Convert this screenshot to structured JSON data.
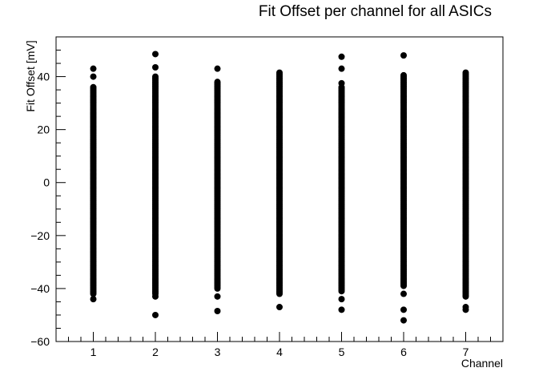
{
  "chart_data": {
    "type": "scatter",
    "title": "Fit Offset per channel for all ASICs",
    "xlabel": "Channel",
    "ylabel": "Fit Offset [mV]",
    "xlim": [
      0.4,
      7.6
    ],
    "ylim": [
      -60,
      55
    ],
    "x_ticks": [
      1,
      2,
      3,
      4,
      5,
      6,
      7
    ],
    "y_ticks": [
      -60,
      -40,
      -20,
      0,
      20,
      40
    ],
    "grid": false,
    "marker_color": "#000000",
    "series": [
      {
        "band_ranges": [
          {
            "channel": 1,
            "dense_min": -42,
            "dense_max": 36
          },
          {
            "channel": 2,
            "dense_min": -42,
            "dense_max": 40
          },
          {
            "channel": 3,
            "dense_min": -40,
            "dense_max": 38
          },
          {
            "channel": 4,
            "dense_min": -42,
            "dense_max": 41
          },
          {
            "channel": 5,
            "dense_min": -41,
            "dense_max": 36
          },
          {
            "channel": 6,
            "dense_min": -39,
            "dense_max": 40
          },
          {
            "channel": 7,
            "dense_min": -43,
            "dense_max": 41
          }
        ],
        "outliers": [
          {
            "x": 1,
            "y": 43
          },
          {
            "x": 1,
            "y": 40
          },
          {
            "x": 1,
            "y": -44
          },
          {
            "x": 2,
            "y": 48.5
          },
          {
            "x": 2,
            "y": 43.5
          },
          {
            "x": 2,
            "y": -43
          },
          {
            "x": 2,
            "y": -50
          },
          {
            "x": 3,
            "y": 43
          },
          {
            "x": 3,
            "y": -43
          },
          {
            "x": 3,
            "y": -48.5
          },
          {
            "x": 4,
            "y": 41.5
          },
          {
            "x": 4,
            "y": -47
          },
          {
            "x": 5,
            "y": 47.5
          },
          {
            "x": 5,
            "y": 43
          },
          {
            "x": 5,
            "y": 37.5
          },
          {
            "x": 5,
            "y": -44
          },
          {
            "x": 5,
            "y": -48
          },
          {
            "x": 6,
            "y": 48
          },
          {
            "x": 6,
            "y": 40.5
          },
          {
            "x": 6,
            "y": -42
          },
          {
            "x": 6,
            "y": -48
          },
          {
            "x": 6,
            "y": -52
          },
          {
            "x": 7,
            "y": 41.5
          },
          {
            "x": 7,
            "y": -47
          },
          {
            "x": 7,
            "y": -48
          }
        ]
      }
    ]
  }
}
